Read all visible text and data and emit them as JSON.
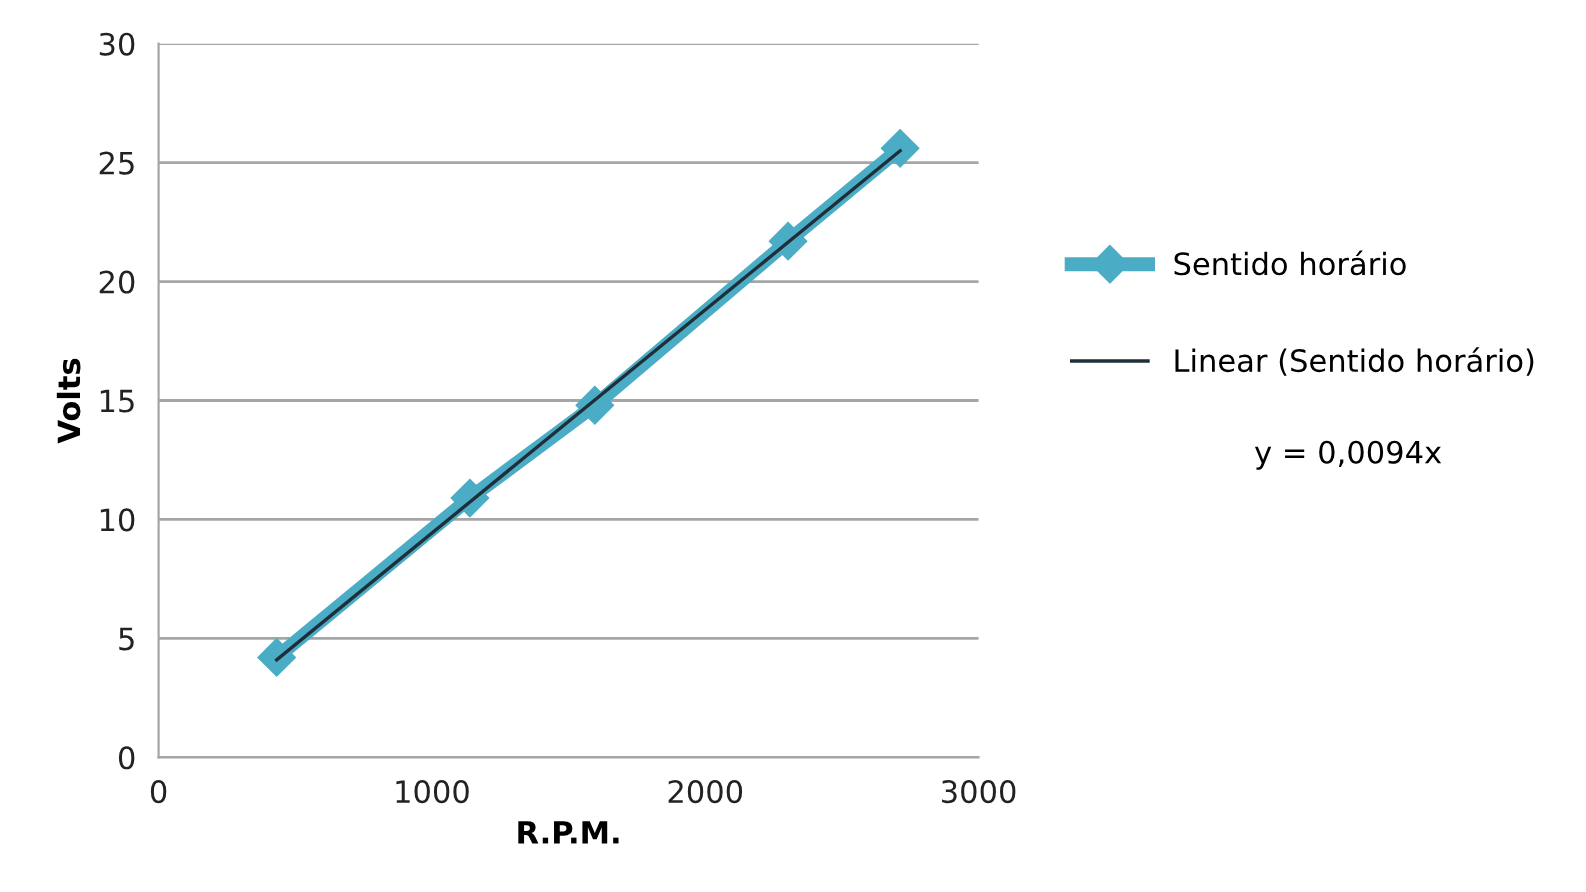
{
  "chart_data": {
    "type": "line",
    "xlabel": "R.P.M.",
    "ylabel": "Volts",
    "series": [
      {
        "name": "Sentido horário",
        "color": "#4bacc6",
        "marker": "diamond",
        "x": [
          432,
          1139,
          1596,
          2303,
          2713
        ],
        "values": [
          4.2,
          10.9,
          14.8,
          21.7,
          25.6
        ]
      },
      {
        "name": "Linear (Sentido horário)",
        "color": "#1f2f3a",
        "marker": "none",
        "x": [
          432,
          2713
        ],
        "values": [
          4.1,
          25.5
        ]
      }
    ],
    "xlim": [
      0,
      3000
    ],
    "xticks": [
      0,
      1000,
      2000,
      3000
    ],
    "ylim": [
      0,
      30
    ],
    "yticks": [
      0,
      5,
      10,
      15,
      20,
      25,
      30
    ],
    "grid": "y",
    "legend": "right",
    "annotations": [
      "y = 0,0094x"
    ]
  }
}
